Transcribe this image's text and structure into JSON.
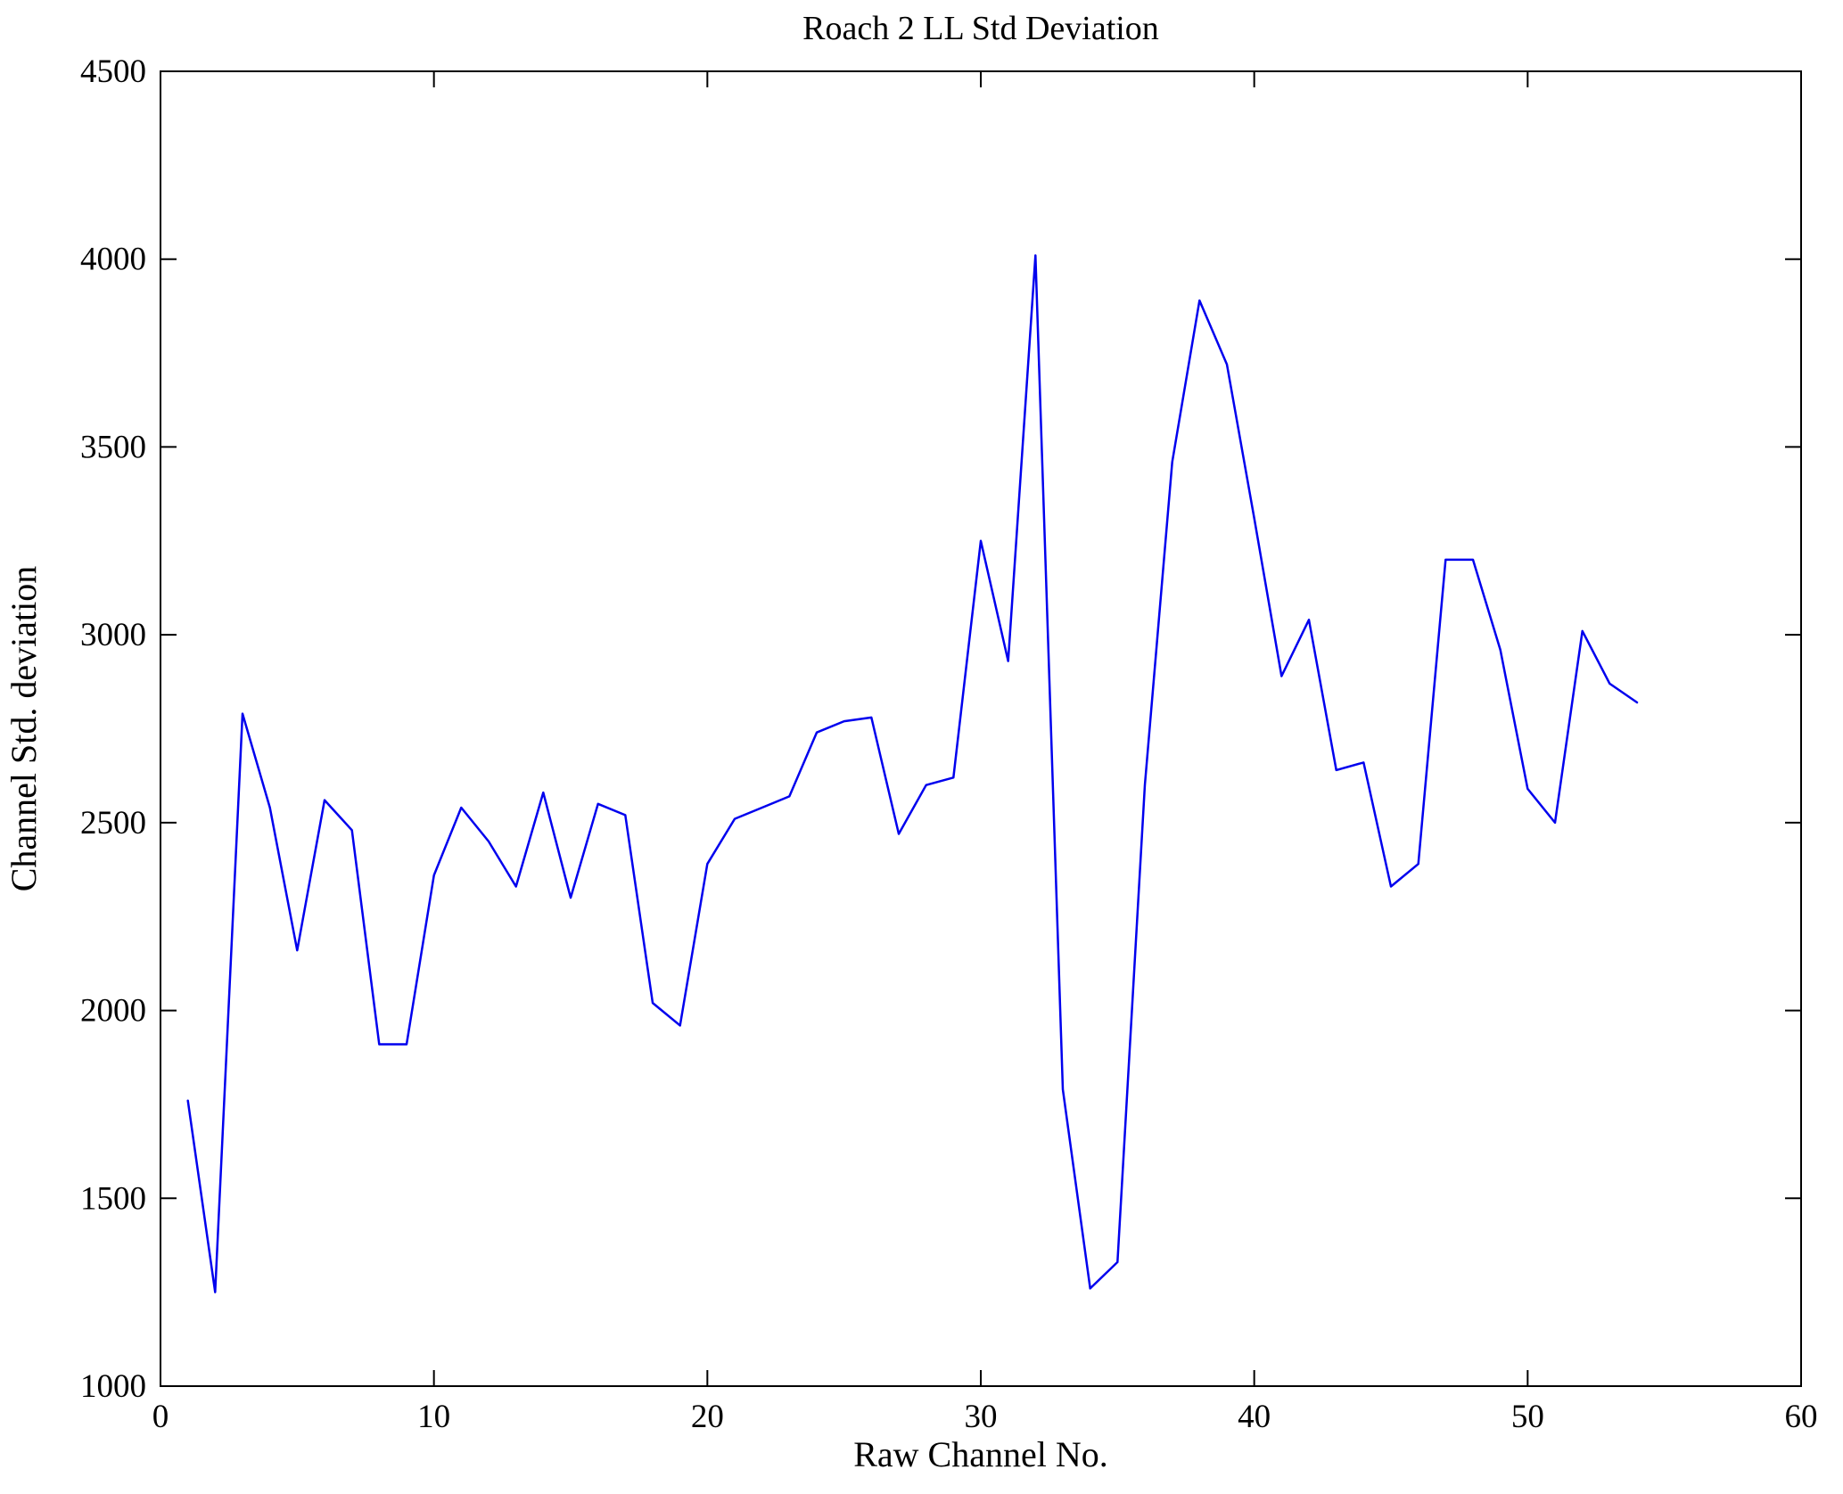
{
  "page": {
    "background": "#ffffff",
    "axis_color": "#000000"
  },
  "chart_data": {
    "type": "line",
    "title": "Roach 2 LL Std Deviation",
    "xlabel": "Raw Channel No.",
    "ylabel": "Channel Std. deviation",
    "xlim": [
      0,
      60
    ],
    "ylim": [
      1000,
      4500
    ],
    "xticks": [
      0,
      10,
      20,
      30,
      40,
      50,
      60
    ],
    "yticks": [
      1000,
      1500,
      2000,
      2500,
      3000,
      3500,
      4000,
      4500
    ],
    "grid": false,
    "legend": "none",
    "line_color": "#0000ee",
    "series": [
      {
        "name": "Channel Std deviation",
        "x": [
          1,
          2,
          3,
          4,
          5,
          6,
          7,
          8,
          9,
          10,
          11,
          12,
          13,
          14,
          15,
          16,
          17,
          18,
          19,
          20,
          21,
          22,
          23,
          24,
          25,
          26,
          27,
          28,
          29,
          30,
          31,
          32,
          33,
          34,
          35,
          36,
          37,
          38,
          39,
          40,
          41,
          42,
          43,
          44,
          45,
          46,
          47,
          48,
          49,
          50,
          51,
          52,
          53,
          54
        ],
        "values": [
          1760,
          1250,
          2790,
          2540,
          2160,
          2560,
          2480,
          1910,
          1910,
          2360,
          2540,
          2450,
          2330,
          2580,
          2300,
          2550,
          2520,
          2020,
          1960,
          2390,
          2510,
          2540,
          2570,
          2740,
          2770,
          2780,
          2470,
          2600,
          2620,
          3250,
          2930,
          4010,
          1790,
          1260,
          1330,
          2600,
          3460,
          3890,
          3720,
          3310,
          2890,
          3040,
          2640,
          2660,
          2330,
          2390,
          3200,
          3200,
          2960,
          2590,
          2500,
          3010,
          2870,
          2820
        ]
      }
    ]
  }
}
